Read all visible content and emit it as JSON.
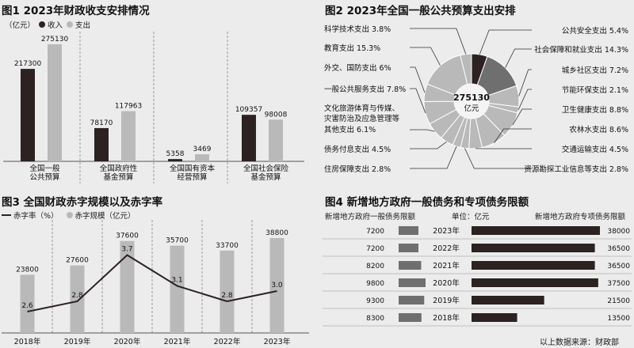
{
  "colors": {
    "dark": "#2b2221",
    "gray": "#b9b9b9",
    "bg": "#ececec",
    "pie_slices": [
      "#2b2221",
      "#6f6f6f",
      "#b9b9b9"
    ]
  },
  "chart1": {
    "title": "图1 2023年财政收支安排情况",
    "unit": "（亿元）",
    "legend": [
      "收入",
      "支出"
    ],
    "chart_data": {
      "type": "bar",
      "categories": [
        "全国一般公共预算",
        "全国政府性基金预算",
        "全国国有资本经营预算",
        "全国社会保险基金预算"
      ],
      "category_lines": [
        [
          "全国一般",
          "公共预算"
        ],
        [
          "全国政府性",
          "基金预算"
        ],
        [
          "全国国有资本",
          "经营预算"
        ],
        [
          "全国社会保险",
          "基金预算"
        ]
      ],
      "series": [
        {
          "name": "收入",
          "values": [
            217300,
            78170,
            5358,
            109357
          ]
        },
        {
          "name": "支出",
          "values": [
            275130,
            117963,
            3469,
            98008
          ]
        }
      ],
      "ylim": [
        0,
        275130
      ]
    }
  },
  "chart2": {
    "title": "图2 2023年全国一般公共预算支出安排",
    "center_value": "275130",
    "center_unit": "亿元",
    "chart_data": {
      "type": "pie",
      "donut": true,
      "total": 275130,
      "slices": [
        {
          "label": "公共安全支出",
          "value": 5.4,
          "text": "5.4%"
        },
        {
          "label": "社会保障和就业支出",
          "value": 14.3,
          "text": "14.3%"
        },
        {
          "label": "城乡社区支出",
          "value": 7.2,
          "text": "7.2%"
        },
        {
          "label": "节能环保支出",
          "value": 2.1,
          "text": "2.1%"
        },
        {
          "label": "卫生健康支出",
          "value": 8.8,
          "text": "8.8%"
        },
        {
          "label": "农林水支出",
          "value": 8.6,
          "text": "8.6%"
        },
        {
          "label": "交通运输支出",
          "value": 4.5,
          "text": "4.5%"
        },
        {
          "label": "资源勘探工业信息等支出",
          "value": 2.8,
          "text": "2.8%"
        },
        {
          "label": "住房保障支出",
          "value": 2.8,
          "text": "2.8%"
        },
        {
          "label": "债务付息支出",
          "value": 4.5,
          "text": "4.5%"
        },
        {
          "label": "文化旅游体育与传媒、灾害防治及应急管理等其他支出",
          "value": 6.1,
          "text": "6.1%"
        },
        {
          "label": "一般公共服务支出",
          "value": 7.8,
          "text": "7.8%"
        },
        {
          "label": "外交、国防支出",
          "value": 6,
          "text": "6%"
        },
        {
          "label": "教育支出",
          "value": 15.3,
          "text": "15.3%"
        },
        {
          "label": "科学技术支出",
          "value": 3.8,
          "text": "3.8%"
        }
      ],
      "other_lines": [
        "文化旅游体育与传媒、",
        "灾害防治及应急管理等",
        "其他支出"
      ]
    }
  },
  "chart3": {
    "title": "图3 全国财政赤字规模以及赤字率",
    "legend": [
      "赤字率（%）",
      "赤字规模（亿元）"
    ],
    "chart_data": {
      "type": "bar",
      "categories": [
        "2018年",
        "2019年",
        "2020年",
        "2021年",
        "2022年",
        "2023年"
      ],
      "series": [
        {
          "name": "赤字规模（亿元）",
          "type": "bar",
          "values": [
            23800,
            27600,
            37600,
            35700,
            33700,
            38800
          ]
        },
        {
          "name": "赤字率（%）",
          "type": "line",
          "values": [
            2.6,
            2.8,
            3.7,
            3.1,
            2.8,
            3.0
          ],
          "labels": [
            "2.6",
            "2.8",
            "3.7",
            "3.1",
            "2.8",
            "3.0"
          ]
        }
      ],
      "ylim_bar": [
        0,
        38800
      ]
    }
  },
  "chart4": {
    "title": "图4 新增地方政府一般债务和专项债务限额",
    "left_header": "新增地方政府一般债务限额",
    "unit": "单位：亿元",
    "right_header": "新增地方政府专项债务限额",
    "chart_data": {
      "type": "bar",
      "orientation": "horizontal",
      "categories": [
        "2023年",
        "2022年",
        "2021年",
        "2020年",
        "2019年",
        "2018年"
      ],
      "series": [
        {
          "name": "新增地方政府一般债务限额",
          "values": [
            7200,
            7200,
            8200,
            9800,
            9300,
            8300
          ]
        },
        {
          "name": "新增地方政府专项债务限额",
          "values": [
            38000,
            36500,
            36500,
            37500,
            21500,
            13500
          ]
        }
      ]
    },
    "source": "以上数据来源：财政部"
  }
}
